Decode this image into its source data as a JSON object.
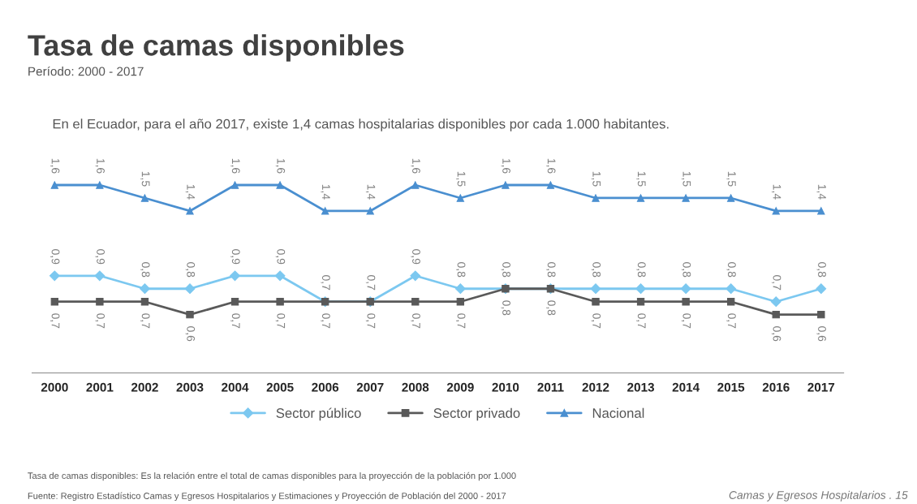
{
  "chart_data": {
    "type": "line",
    "title": "Tasa de camas disponibles",
    "subtitle": "Período: 2000 - 2017",
    "annotations": [
      "En el Ecuador, para el año 2017, existe 1,4 camas hospitalarias disponibles por cada 1.000 habitantes.",
      "Tasa de camas disponibles: Es la relación entre el total de camas disponibles para la proyección de la población por 1.000",
      "Fuente: Registro Estadístico Camas y Egresos Hospitalarios y Estimaciones y Proyección de Población del 2000 - 2017",
      "Camas y Egresos Hospitalarios . 15"
    ],
    "categories": [
      "2000",
      "2001",
      "2002",
      "2003",
      "2004",
      "2005",
      "2006",
      "2007",
      "2008",
      "2009",
      "2010",
      "2011",
      "2012",
      "2013",
      "2014",
      "2015",
      "2016",
      "2017"
    ],
    "series": [
      {
        "name": "Sector público",
        "color": "#7cc8f0",
        "marker": "diamond",
        "values": [
          0.9,
          0.9,
          0.8,
          0.8,
          0.9,
          0.9,
          0.7,
          0.7,
          0.9,
          0.8,
          0.8,
          0.8,
          0.8,
          0.8,
          0.8,
          0.8,
          0.7,
          0.8
        ],
        "value_labels": [
          "0,9",
          "0,9",
          "0,8",
          "0,8",
          "0,9",
          "0,9",
          "0,7",
          "0,7",
          "0,9",
          "0,8",
          "0,8",
          "0,8",
          "0,8",
          "0,8",
          "0,8",
          "0,8",
          "0,7",
          "0,8"
        ]
      },
      {
        "name": "Sector privado",
        "color": "#595959",
        "marker": "square",
        "values": [
          0.7,
          0.7,
          0.7,
          0.6,
          0.7,
          0.7,
          0.7,
          0.7,
          0.7,
          0.7,
          0.8,
          0.8,
          0.7,
          0.7,
          0.7,
          0.7,
          0.6,
          0.6
        ],
        "value_labels": [
          "0,7",
          "0,7",
          "0,7",
          "0,6",
          "0,7",
          "0,7",
          "0,7",
          "0,7",
          "0,7",
          "0,7",
          "0,8",
          "0,8",
          "0,7",
          "0,7",
          "0,7",
          "0,7",
          "0,6",
          "0,6"
        ]
      },
      {
        "name": "Nacional",
        "color": "#4a8fd0",
        "marker": "triangle",
        "values": [
          1.6,
          1.6,
          1.5,
          1.4,
          1.6,
          1.6,
          1.4,
          1.4,
          1.6,
          1.5,
          1.6,
          1.6,
          1.5,
          1.5,
          1.5,
          1.5,
          1.4,
          1.4
        ],
        "value_labels": [
          "1,6",
          "1,6",
          "1,5",
          "1,4",
          "1,6",
          "1,6",
          "1,4",
          "1,4",
          "1,6",
          "1,5",
          "1,6",
          "1,6",
          "1,5",
          "1,5",
          "1,5",
          "1,5",
          "1,4",
          "1,4"
        ]
      }
    ],
    "legend": "bottom",
    "grid": false,
    "tick_labels": "x"
  }
}
